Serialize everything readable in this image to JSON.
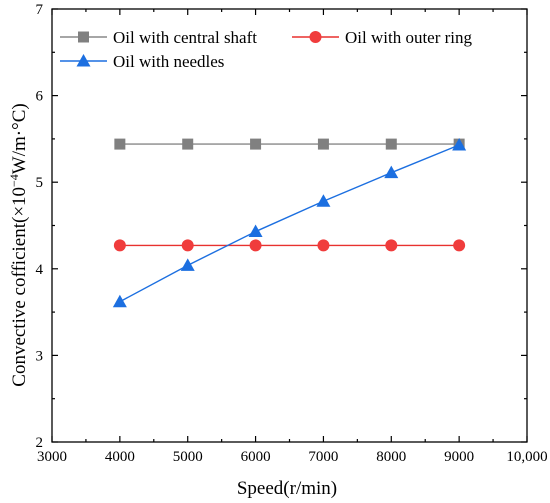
{
  "chart_data": {
    "type": "line",
    "xlabel": "Speed(r/min)",
    "ylabel_parts": {
      "pre": "Convective cofficient(×10",
      "sup": "−4",
      "post": "W/m·°C)"
    },
    "xlim": [
      3000,
      10000
    ],
    "ylim": [
      2,
      7
    ],
    "x_ticks": [
      3000,
      4000,
      5000,
      6000,
      7000,
      8000,
      9000,
      10000
    ],
    "x_tick_labels": [
      "3000",
      "4000",
      "5000",
      "6000",
      "7000",
      "8000",
      "9000",
      "10,000"
    ],
    "y_ticks": [
      2,
      3,
      4,
      5,
      6,
      7
    ],
    "y_tick_labels": [
      "2",
      "3",
      "4",
      "5",
      "6",
      "7"
    ],
    "grid": false,
    "legend_position": "top",
    "x": [
      4000,
      5000,
      6000,
      7000,
      8000,
      9000
    ],
    "series": [
      {
        "name": "Oil with central shaft",
        "values": [
          5.44,
          5.44,
          5.44,
          5.44,
          5.44,
          5.44
        ],
        "color": "#808080",
        "line_color": "#888888",
        "marker": "square"
      },
      {
        "name": "Oil with outer ring",
        "values": [
          4.27,
          4.27,
          4.27,
          4.27,
          4.27,
          4.27
        ],
        "color": "#f03c3c",
        "line_color": "#e8312f",
        "marker": "circle"
      },
      {
        "name": "Oil with needles",
        "values": [
          3.62,
          4.04,
          4.43,
          4.78,
          5.11,
          5.43
        ],
        "color": "#1c6fe0",
        "line_color": "#1c6fe0",
        "marker": "triangle"
      }
    ]
  }
}
